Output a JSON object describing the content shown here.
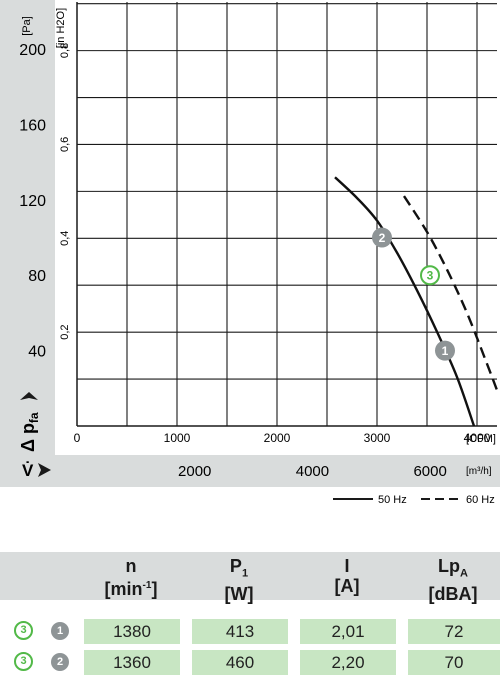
{
  "chart_data": {
    "type": "line",
    "ylabel_left": "[Pa]",
    "ylabel_right": "[in H2O]",
    "yticks_pa": [
      "40",
      "80",
      "120",
      "160",
      "200"
    ],
    "yticks_inh2o": [
      "0,2",
      "0,4",
      "0,6",
      "0,8"
    ],
    "xticks_cfm": [
      "0",
      "1000",
      "2000",
      "3000",
      "4000"
    ],
    "xunit_cfm": "[CFM]",
    "xticks_m3h": [
      "2000",
      "4000",
      "6000"
    ],
    "xunit_m3h": "[m³/h]",
    "ylim_pa": [
      0,
      225
    ],
    "xlim_cfm": [
      0,
      4200
    ],
    "axis_symbol_pressure": "Δ p",
    "axis_symbol_pressure_sub": "fa",
    "axis_symbol_flow": "V̇",
    "grid": true,
    "series": [
      {
        "name": "50 Hz",
        "style": "solid",
        "points_cfm_pa": [
          [
            2580,
            132
          ],
          [
            2800,
            121
          ],
          [
            3000,
            109
          ],
          [
            3200,
            92
          ],
          [
            3400,
            72
          ],
          [
            3600,
            50
          ],
          [
            3800,
            26
          ],
          [
            3970,
            0
          ]
        ]
      },
      {
        "name": "60 Hz",
        "style": "dashed",
        "points_cfm_pa": [
          [
            3270,
            122
          ],
          [
            3500,
            103
          ],
          [
            3700,
            83
          ],
          [
            3900,
            60
          ],
          [
            4100,
            33
          ],
          [
            4200,
            19
          ]
        ]
      }
    ],
    "markers": [
      {
        "label": "1",
        "style": "grey",
        "x_cfm": 3680,
        "y_pa": 40
      },
      {
        "label": "2",
        "style": "grey",
        "x_cfm": 3050,
        "y_pa": 100
      },
      {
        "label": "3",
        "style": "open-green",
        "x_cfm": 3530,
        "y_pa": 80
      }
    ]
  },
  "legend": {
    "solid_label": "50 Hz",
    "dashed_label": "60 Hz"
  },
  "table": {
    "headers": [
      {
        "main": "n",
        "unit": "[min-1]"
      },
      {
        "main": "P1",
        "unit": "[W]"
      },
      {
        "main": "I",
        "unit": "[A]"
      },
      {
        "main": "LpA",
        "unit": "[dBA]"
      }
    ],
    "rows": [
      {
        "badge_left": "3",
        "badge_right": "1",
        "values": [
          "1380",
          "413",
          "2,01",
          "72"
        ]
      },
      {
        "badge_left": "3",
        "badge_right": "2",
        "values": [
          "1360",
          "460",
          "2,20",
          "70"
        ]
      }
    ]
  },
  "colors": {
    "panel": "#d9dcdc",
    "cell": "#c8e6c3",
    "accent_green": "#52b948",
    "marker_grey": "#8e9496"
  }
}
